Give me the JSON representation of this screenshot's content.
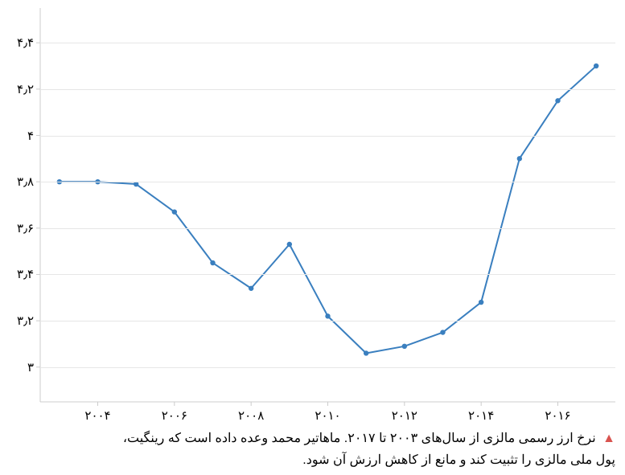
{
  "chart": {
    "type": "line",
    "background_color": "#ffffff",
    "grid_color": "#e6e6e6",
    "axis_color": "#cccccc",
    "line_color": "#3a7fbf",
    "marker_color": "#3a7fbf",
    "line_width": 2,
    "marker_radius": 3.2,
    "ylim": [
      2.85,
      4.55
    ],
    "xlim": [
      2002.5,
      2017.5
    ],
    "yticks": [
      3.0,
      3.2,
      3.4,
      3.6,
      3.8,
      4.0,
      4.2,
      4.4
    ],
    "ytick_labels": [
      "۳",
      "۳٫۲",
      "۳٫۴",
      "۳٫۶",
      "۳٫۸",
      "۴",
      "۴٫۲",
      "۴٫۴"
    ],
    "xticks": [
      2004,
      2006,
      2008,
      2010,
      2012,
      2014,
      2016
    ],
    "xtick_labels": [
      "۲۰۰۴",
      "۲۰۰۶",
      "۲۰۰۸",
      "۲۰۱۰",
      "۲۰۱۲",
      "۲۰۱۴",
      "۲۰۱۶"
    ],
    "tick_fontsize": 15,
    "series": {
      "x": [
        2003,
        2004,
        2005,
        2006,
        2007,
        2008,
        2009,
        2010,
        2011,
        2012,
        2013,
        2014,
        2015,
        2016,
        2017
      ],
      "y": [
        3.8,
        3.8,
        3.79,
        3.67,
        3.45,
        3.34,
        3.53,
        3.22,
        3.06,
        3.09,
        3.15,
        3.28,
        3.9,
        4.15,
        4.3
      ]
    }
  },
  "caption": {
    "marker": "▲",
    "line1": "نرخ ارز رسمی مالزی از سال‌های ۲۰۰۳ تا ۲۰۱۷. ماهاتیر محمد وعده داده است که رینگیت،",
    "line2": "پول ملی مالزی را تثبیت کند و مانع از کاهش ارزش آن شود."
  }
}
